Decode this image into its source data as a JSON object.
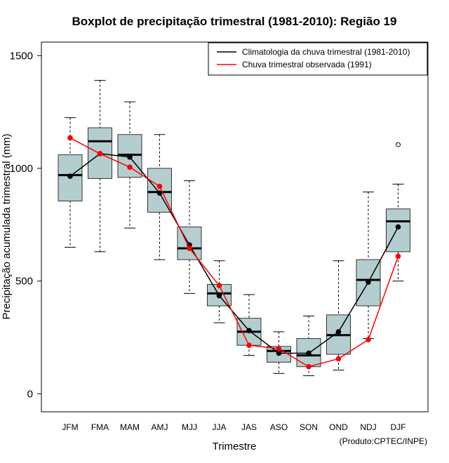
{
  "chart_data": {
    "type": "boxplot",
    "title": "Boxplot de precipitação trimestral (1981-2010): Região 19",
    "xlabel": "Trimestre",
    "ylabel": "Precipitação acumulada trimestral (mm)",
    "credit": "(Produto:CPTEC/INPE)",
    "ylim": [
      -80,
      1560
    ],
    "yticks": [
      0,
      500,
      1000,
      1500
    ],
    "ytick_labels": [
      "0",
      "500",
      "1000",
      "1500"
    ],
    "categories": [
      "JFM",
      "FMA",
      "MAM",
      "AMJ",
      "MJJ",
      "JJA",
      "JAS",
      "ASO",
      "SON",
      "OND",
      "NDJ",
      "DJF"
    ],
    "boxes": [
      {
        "min": 650,
        "q1": 855,
        "median": 970,
        "q3": 1060,
        "max": 1225
      },
      {
        "min": 630,
        "q1": 955,
        "median": 1120,
        "q3": 1180,
        "max": 1390
      },
      {
        "min": 735,
        "q1": 960,
        "median": 1060,
        "q3": 1150,
        "max": 1295
      },
      {
        "min": 595,
        "q1": 805,
        "median": 895,
        "q3": 1000,
        "max": 1150
      },
      {
        "min": 445,
        "q1": 595,
        "median": 645,
        "q3": 740,
        "max": 945
      },
      {
        "min": 315,
        "q1": 390,
        "median": 445,
        "q3": 485,
        "max": 590
      },
      {
        "min": 170,
        "q1": 215,
        "median": 275,
        "q3": 335,
        "max": 440
      },
      {
        "min": 90,
        "q1": 140,
        "median": 190,
        "q3": 210,
        "max": 275
      },
      {
        "min": 80,
        "q1": 120,
        "median": 170,
        "q3": 245,
        "max": 345
      },
      {
        "min": 105,
        "q1": 175,
        "median": 260,
        "q3": 350,
        "max": 590
      },
      {
        "min": 245,
        "q1": 390,
        "median": 505,
        "q3": 595,
        "max": 895
      },
      {
        "min": 500,
        "q1": 630,
        "median": 765,
        "q3": 820,
        "max": 930
      }
    ],
    "outliers": [
      {
        "category": "DJF",
        "value": 1105
      }
    ],
    "series": [
      {
        "name": "Climatologia da chuva trimestral (1981-2010)",
        "color": "#000000",
        "values": [
          965,
          1065,
          1050,
          890,
          660,
          435,
          280,
          180,
          180,
          275,
          495,
          740
        ]
      },
      {
        "name": "Chuva trimestral observada (1991)",
        "color": "#ff0000",
        "values": [
          1135,
          1065,
          1005,
          920,
          645,
          480,
          215,
          200,
          120,
          155,
          240,
          610
        ]
      }
    ],
    "box_fill": "#b4cecf",
    "legend_position": "top-right"
  }
}
